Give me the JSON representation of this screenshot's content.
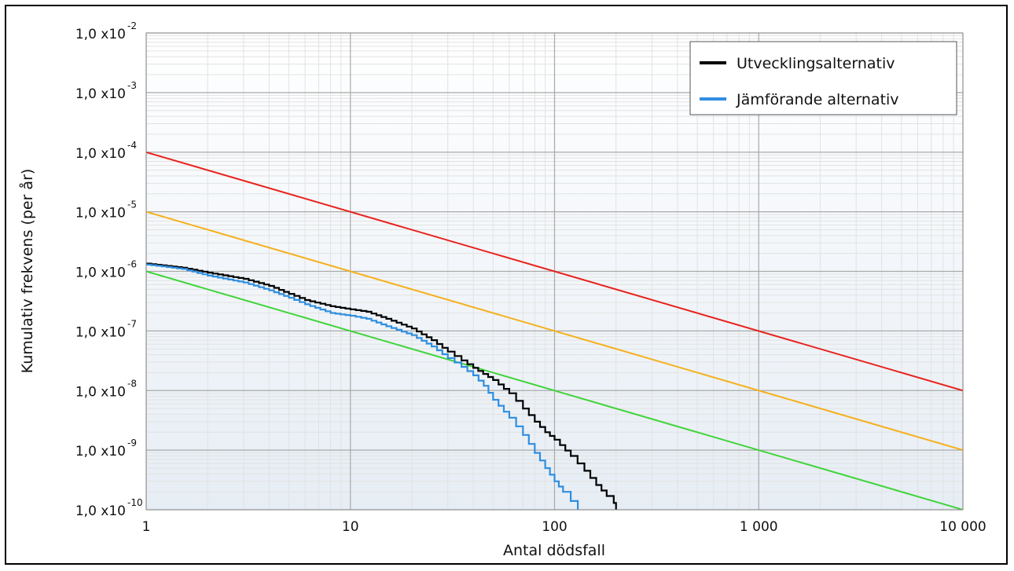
{
  "chart_data": {
    "type": "line",
    "xlabel": "Antal dödsfall",
    "ylabel": "Kumulativ frekvens (per år)",
    "x_scale": "log",
    "y_scale": "log",
    "xlim": [
      1,
      10000
    ],
    "ylim": [
      1e-10,
      0.01
    ],
    "x_ticks": [
      {
        "value": 1,
        "label": "1"
      },
      {
        "value": 10,
        "label": "10"
      },
      {
        "value": 100,
        "label": "100"
      },
      {
        "value": 1000,
        "label": "1 000"
      },
      {
        "value": 10000,
        "label": "10 000"
      }
    ],
    "y_ticks": [
      {
        "value": 0.01,
        "mantissa": "1,0 x10",
        "exp": "-2"
      },
      {
        "value": 0.001,
        "mantissa": "1,0 x10",
        "exp": "-3"
      },
      {
        "value": 0.0001,
        "mantissa": "1,0 x10",
        "exp": "-4"
      },
      {
        "value": 1e-05,
        "mantissa": "1,0 x10",
        "exp": "-5"
      },
      {
        "value": 1e-06,
        "mantissa": "1,0 x10",
        "exp": "-6"
      },
      {
        "value": 1e-07,
        "mantissa": "1,0 x10",
        "exp": "-7"
      },
      {
        "value": 1e-08,
        "mantissa": "1,0 x10",
        "exp": "-8"
      },
      {
        "value": 1e-09,
        "mantissa": "1,0 x10",
        "exp": "-9"
      },
      {
        "value": 1e-10,
        "mantissa": "1,0 x10",
        "exp": "-10"
      }
    ],
    "grid": true,
    "legend_position": "top-right",
    "criteria_lines": [
      {
        "color": "#e8231e",
        "points": [
          [
            1,
            0.0001
          ],
          [
            10000,
            1e-08
          ]
        ]
      },
      {
        "color": "#f5b01d",
        "points": [
          [
            1,
            1e-05
          ],
          [
            10000,
            1e-09
          ]
        ]
      },
      {
        "color": "#3fd43a",
        "points": [
          [
            1,
            1e-06
          ],
          [
            10,
            1e-07
          ],
          [
            100,
            1e-08
          ],
          [
            10000,
            1e-10
          ]
        ]
      }
    ],
    "series": [
      {
        "name": "Utvecklingsalternativ",
        "color": "#000000",
        "step": true,
        "points": [
          [
            1,
            1.35e-06
          ],
          [
            1.5,
            1.15e-06
          ],
          [
            2,
            9.5e-07
          ],
          [
            3,
            7.5e-07
          ],
          [
            4,
            5.7e-07
          ],
          [
            5,
            4.2e-07
          ],
          [
            6,
            3.3e-07
          ],
          [
            8,
            2.6e-07
          ],
          [
            10,
            2.3e-07
          ],
          [
            12,
            2.1e-07
          ],
          [
            15,
            1.6e-07
          ],
          [
            20,
            1.1e-07
          ],
          [
            25,
            7e-08
          ],
          [
            30,
            4.5e-08
          ],
          [
            35,
            3.2e-08
          ],
          [
            40,
            2.4e-08
          ],
          [
            50,
            1.5e-08
          ],
          [
            60,
            9e-09
          ],
          [
            70,
            5e-09
          ],
          [
            80,
            3e-09
          ],
          [
            90,
            2e-09
          ],
          [
            100,
            1.5e-09
          ],
          [
            120,
            8e-10
          ],
          [
            140,
            4.5e-10
          ],
          [
            160,
            2.6e-10
          ],
          [
            180,
            1.7e-10
          ],
          [
            195,
            1.3e-10
          ],
          [
            200,
            1e-10
          ]
        ]
      },
      {
        "name": "Jämförande alternativ",
        "color": "#2f8ee0",
        "step": true,
        "points": [
          [
            1,
            1.3e-06
          ],
          [
            1.5,
            1.1e-06
          ],
          [
            2,
            8.5e-07
          ],
          [
            3,
            6.5e-07
          ],
          [
            4,
            4.8e-07
          ],
          [
            5,
            3.6e-07
          ],
          [
            6,
            2.8e-07
          ],
          [
            8,
            2e-07
          ],
          [
            10,
            1.8e-07
          ],
          [
            12,
            1.6e-07
          ],
          [
            15,
            1.2e-07
          ],
          [
            20,
            8.5e-08
          ],
          [
            25,
            5.5e-08
          ],
          [
            30,
            3.5e-08
          ],
          [
            35,
            2.5e-08
          ],
          [
            40,
            1.8e-08
          ],
          [
            45,
            1.2e-08
          ],
          [
            50,
            7e-09
          ],
          [
            60,
            3.5e-09
          ],
          [
            70,
            1.8e-09
          ],
          [
            80,
            9e-10
          ],
          [
            90,
            5e-10
          ],
          [
            100,
            3e-10
          ],
          [
            110,
            2e-10
          ],
          [
            120,
            1.4e-10
          ],
          [
            130,
            1e-10
          ]
        ]
      }
    ]
  }
}
